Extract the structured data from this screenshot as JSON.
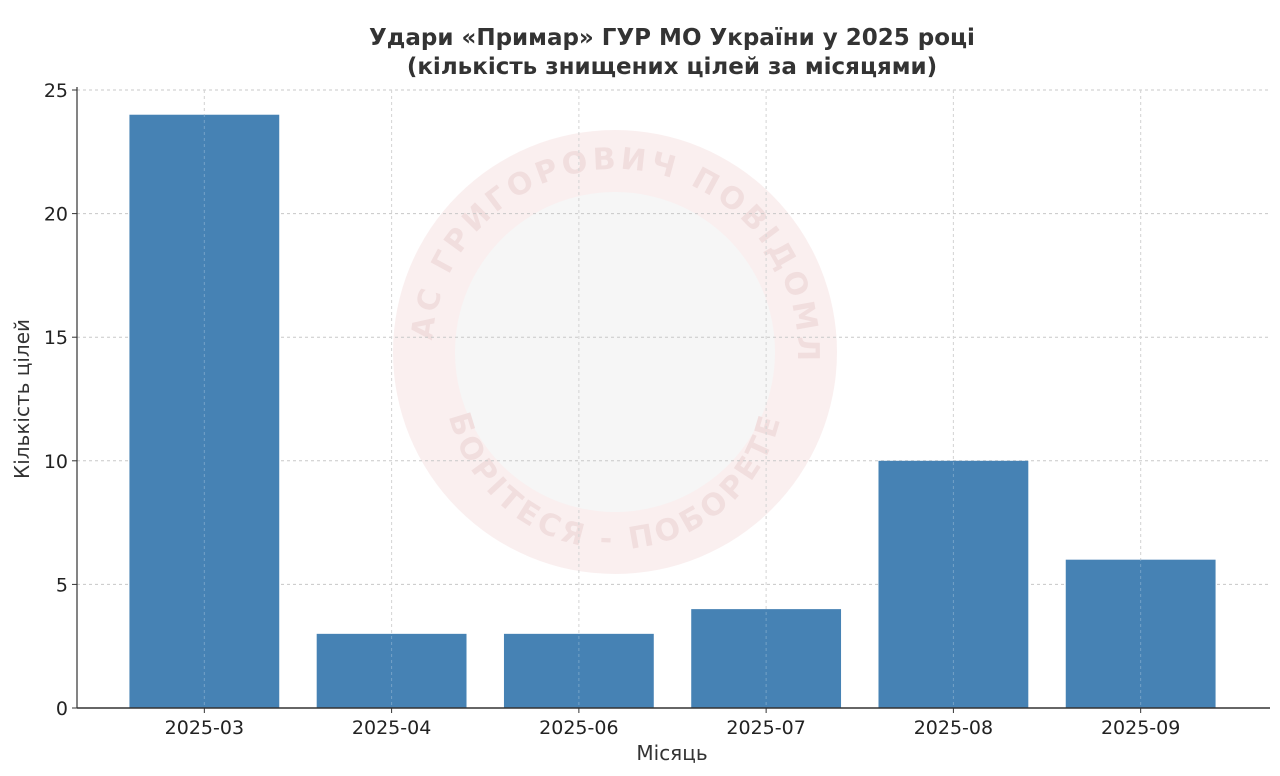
{
  "chart_data": {
    "type": "bar",
    "title": "Удари «Примар» ГУР МО України у 2025 році",
    "subtitle": "(кількість знищених цілей за місяцями)",
    "xlabel": "Місяць",
    "ylabel": "Кількість цілей",
    "categories": [
      "2025-03",
      "2025-04",
      "2025-06",
      "2025-07",
      "2025-08",
      "2025-09"
    ],
    "values": [
      24,
      3,
      3,
      4,
      10,
      6
    ],
    "ylim": [
      0,
      25
    ],
    "yticks": [
      0,
      5,
      10,
      15,
      20,
      25
    ],
    "grid": true,
    "bar_color": "#4682b4"
  },
  "watermark": {
    "top_text": "ТАРАС ГРИГОРОВИЧ ПОВІДОМЛЯЄ",
    "bottom_text": "БОРІТЕСЯ - ПОБОРЕТЕ"
  }
}
